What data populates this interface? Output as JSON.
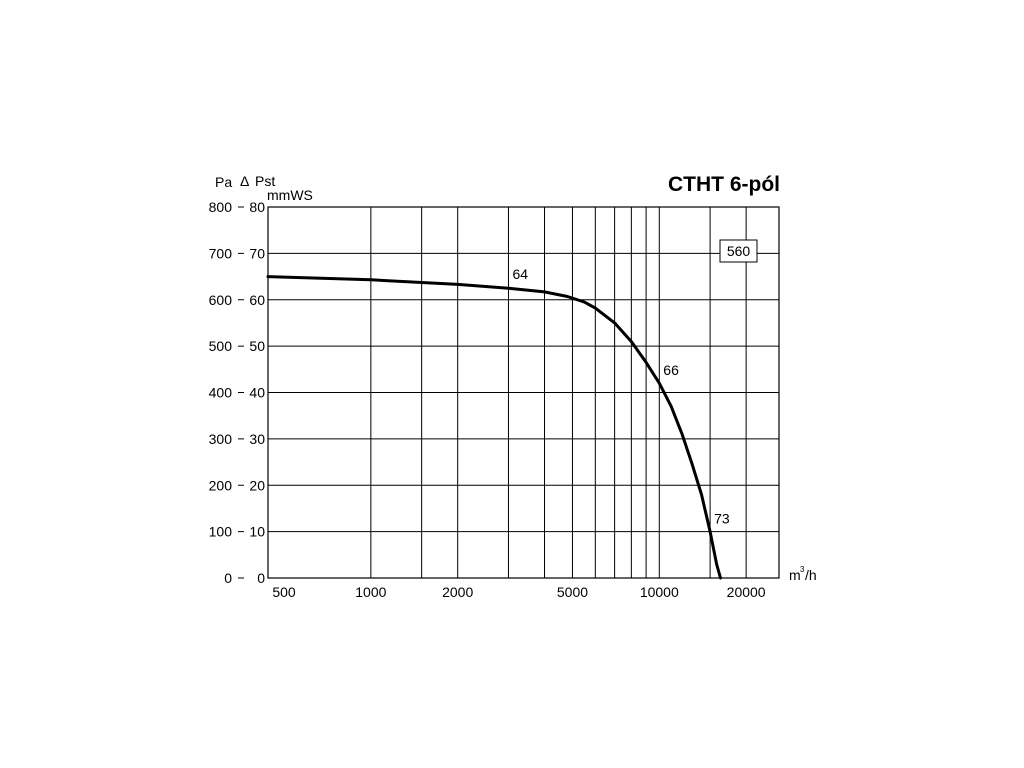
{
  "chart_data": {
    "type": "line",
    "title": "CTHT 6-pól",
    "model_badge": "560",
    "y_left_unit": "Pa",
    "delta_symbol": "Δ",
    "y_quantity": "Pst",
    "y_inner_unit": "mmWS",
    "x_unit_prefix": "m",
    "x_unit_sup": "3",
    "x_unit_suffix": "/h",
    "x_scale": "log",
    "grid": true,
    "xlim": [
      440,
      26000
    ],
    "ylim": [
      0,
      800
    ],
    "x_gridlines": [
      1000,
      1500,
      2000,
      3000,
      4000,
      5000,
      6000,
      7000,
      8000,
      9000,
      10000,
      15000,
      20000
    ],
    "x_ticks": [
      {
        "value": 500,
        "label": "500"
      },
      {
        "value": 1000,
        "label": "1000"
      },
      {
        "value": 2000,
        "label": "2000"
      },
      {
        "value": 5000,
        "label": "5000"
      },
      {
        "value": 10000,
        "label": "10000"
      },
      {
        "value": 20000,
        "label": "20000"
      }
    ],
    "y_ticks_pa": [
      {
        "value": 0,
        "label": "0"
      },
      {
        "value": 100,
        "label": "100"
      },
      {
        "value": 200,
        "label": "200"
      },
      {
        "value": 300,
        "label": "300"
      },
      {
        "value": 400,
        "label": "400"
      },
      {
        "value": 500,
        "label": "500"
      },
      {
        "value": 600,
        "label": "600"
      },
      {
        "value": 700,
        "label": "700"
      },
      {
        "value": 800,
        "label": "800"
      }
    ],
    "y_ticks_mmws": [
      {
        "value": 0,
        "label": "0"
      },
      {
        "value": 100,
        "label": "10"
      },
      {
        "value": 200,
        "label": "20"
      },
      {
        "value": 300,
        "label": "30"
      },
      {
        "value": 400,
        "label": "40"
      },
      {
        "value": 500,
        "label": "50"
      },
      {
        "value": 600,
        "label": "60"
      },
      {
        "value": 700,
        "label": "70"
      },
      {
        "value": 800,
        "label": "80"
      }
    ],
    "series": [
      {
        "x": [
          440,
          1000,
          2000,
          3000,
          4000,
          4800,
          5500,
          6000,
          7000,
          8000,
          9000,
          10000,
          11000,
          12000,
          13000,
          14000,
          15000,
          15800,
          16300
        ],
        "y": [
          650,
          643,
          633,
          625,
          617,
          607,
          595,
          582,
          550,
          510,
          465,
          420,
          370,
          310,
          245,
          180,
          100,
          30,
          0
        ]
      }
    ],
    "annotations": [
      {
        "text": "64",
        "x": 3000,
        "y": 628
      },
      {
        "text": "66",
        "x": 10000,
        "y": 420
      },
      {
        "text": "73",
        "x": 15000,
        "y": 100
      }
    ]
  }
}
